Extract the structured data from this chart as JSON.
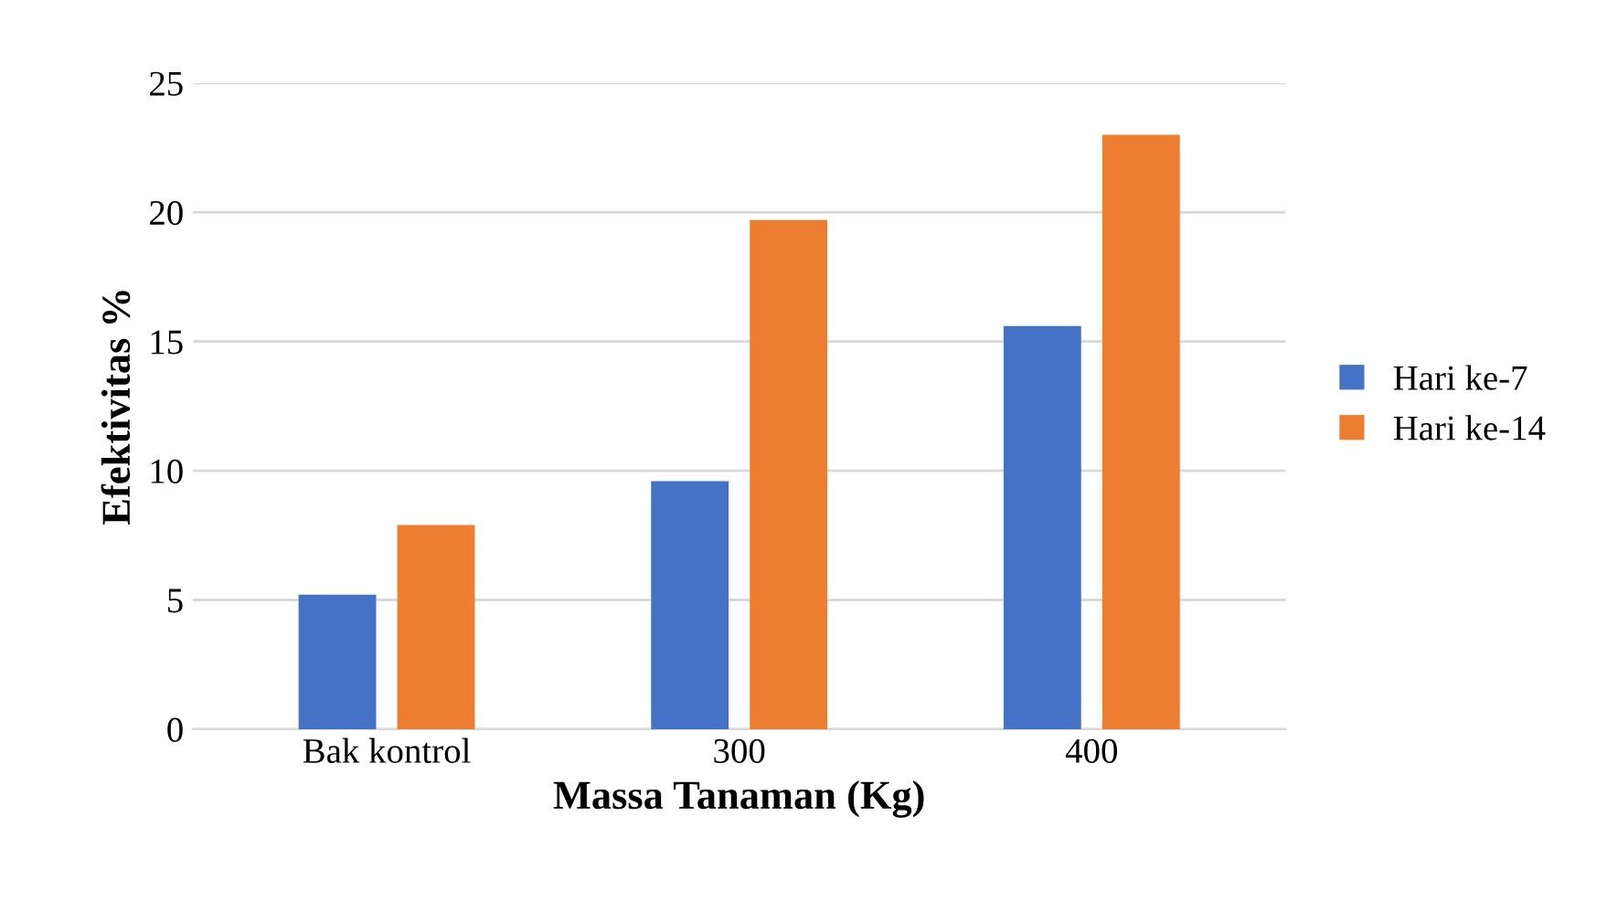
{
  "chart_data": {
    "type": "bar",
    "xlabel": "Massa Tanaman (Kg)",
    "ylabel": "Efektivitas %",
    "categories": [
      "Bak kontrol",
      "300",
      "400"
    ],
    "series": [
      {
        "name": "Hari ke-7",
        "color": "#4472c4",
        "values": [
          5.2,
          9.6,
          15.6
        ]
      },
      {
        "name": "Hari ke-14",
        "color": "#ed7d31",
        "values": [
          7.9,
          19.7,
          23.0
        ]
      }
    ],
    "ylim": [
      0,
      25
    ],
    "yticks": [
      0,
      5,
      10,
      15,
      20,
      25
    ],
    "grid": "y",
    "legend": "right"
  }
}
